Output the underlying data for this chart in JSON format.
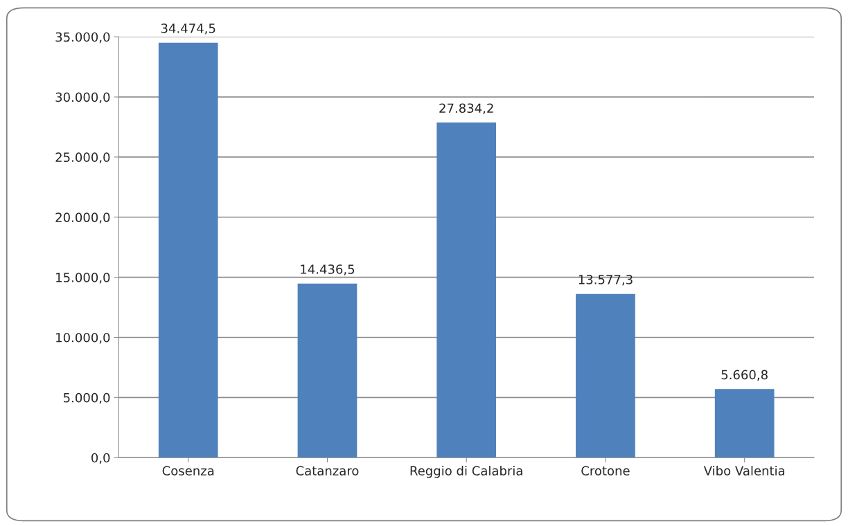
{
  "chart_data": {
    "type": "bar",
    "categories": [
      "Cosenza",
      "Catanzaro",
      "Reggio di Calabria",
      "Crotone",
      "Vibo Valentia"
    ],
    "values": [
      34474.5,
      14436.5,
      27834.2,
      13577.3,
      5660.8
    ],
    "value_labels": [
      "34.474,5",
      "14.436,5",
      "27.834,2",
      "13.577,3",
      "5.660,8"
    ],
    "color": "#4f81bd",
    "ylim": [
      0,
      35000
    ],
    "yticks": [
      {
        "value": 0,
        "label": "0,0"
      },
      {
        "value": 5000,
        "label": "5.000,0"
      },
      {
        "value": 10000,
        "label": "10.000,0"
      },
      {
        "value": 15000,
        "label": "15.000,0"
      },
      {
        "value": 20000,
        "label": "20.000,0"
      },
      {
        "value": 25000,
        "label": "25.000,0"
      },
      {
        "value": 30000,
        "label": "30.000,0"
      },
      {
        "value": 35000,
        "label": "35.000,0"
      }
    ],
    "grid": "y",
    "legend": false
  }
}
